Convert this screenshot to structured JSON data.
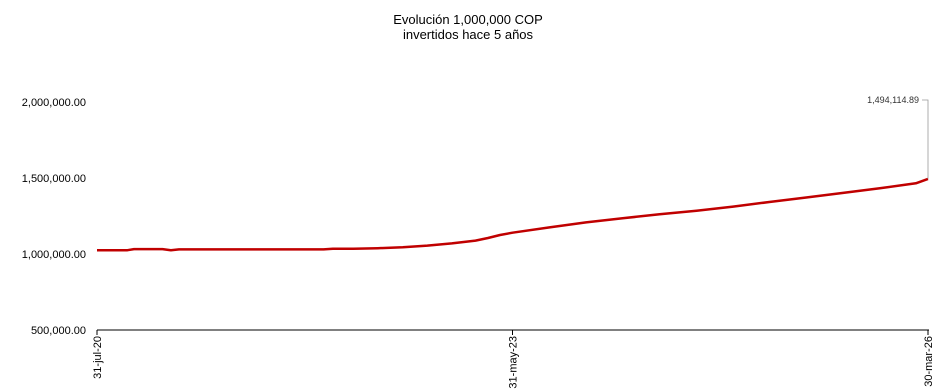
{
  "chart_data": {
    "type": "line",
    "title": "Evolución 1,000,000 COP",
    "subtitle": "invertidos hace 5 años",
    "xlabel": "",
    "ylabel": "",
    "x_tick_labels": [
      "31-jul-20",
      "31-may-23",
      "30-mar-26"
    ],
    "y_tick_labels": [
      "500,000.00",
      "1,000,000.00",
      "1,500,000.00",
      "2,000,000.00"
    ],
    "ylim": [
      500000,
      2000000
    ],
    "grid": false,
    "legend": "none",
    "series": [
      {
        "color": "#c00000",
        "points": [
          [
            "2020-07-31",
            1025000
          ],
          [
            "2020-10-15",
            1025000
          ],
          [
            "2020-10-31",
            1032000
          ],
          [
            "2021-01-10",
            1032000
          ],
          [
            "2021-01-31",
            1025000
          ],
          [
            "2021-02-20",
            1030000
          ],
          [
            "2021-06-30",
            1030000
          ],
          [
            "2022-02-15",
            1030000
          ],
          [
            "2022-03-10",
            1034000
          ],
          [
            "2022-04-30",
            1035000
          ],
          [
            "2022-06-30",
            1038000
          ],
          [
            "2022-08-31",
            1045000
          ],
          [
            "2022-10-31",
            1055000
          ],
          [
            "2022-12-31",
            1070000
          ],
          [
            "2023-02-28",
            1088000
          ],
          [
            "2023-03-31",
            1105000
          ],
          [
            "2023-04-30",
            1125000
          ],
          [
            "2023-05-31",
            1140000
          ],
          [
            "2023-08-31",
            1175000
          ],
          [
            "2023-11-30",
            1208000
          ],
          [
            "2024-02-29",
            1235000
          ],
          [
            "2024-05-31",
            1262000
          ],
          [
            "2024-08-31",
            1285000
          ],
          [
            "2024-11-30",
            1312000
          ],
          [
            "2025-02-28",
            1342000
          ],
          [
            "2025-05-31",
            1372000
          ],
          [
            "2025-08-31",
            1402000
          ],
          [
            "2025-11-30",
            1432000
          ],
          [
            "2026-02-28",
            1465000
          ],
          [
            "2026-03-30",
            1494114.89
          ]
        ]
      }
    ],
    "annotations": [
      {
        "x": "2026-03-30",
        "y": 1494114.89,
        "text": "1,494,114.89"
      }
    ]
  }
}
